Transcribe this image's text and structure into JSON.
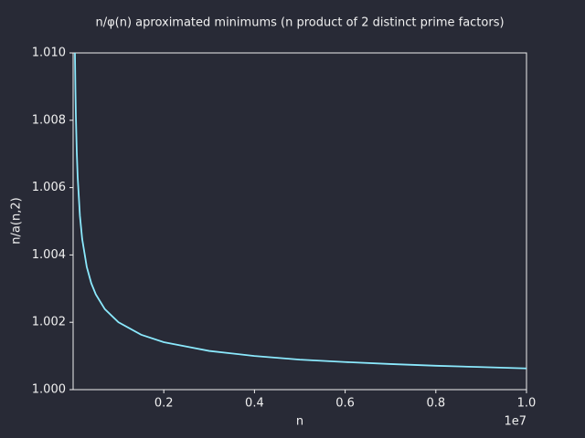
{
  "chart_data": {
    "type": "line",
    "title": "n/φ(n) aproximated minimums (n product of 2 distinct prime factors)",
    "xlabel": "n",
    "ylabel": "n/a(n,2)",
    "x_offset_label": "1e7",
    "x": [
      40000,
      50000,
      60000,
      80000,
      100000,
      150000,
      200000,
      300000,
      400000,
      500000,
      700000,
      1000000,
      1500000,
      2000000,
      3000000,
      4000000,
      5000000,
      6000000,
      7000000,
      8000000,
      9000000,
      10000000
    ],
    "series": [
      {
        "name": "n/a(n,2)",
        "color": "#8be9fd",
        "values": [
          1.01,
          1.00894,
          1.00816,
          1.00707,
          1.00632,
          1.00516,
          1.00447,
          1.00365,
          1.00316,
          1.00283,
          1.00239,
          1.002,
          1.00163,
          1.00141,
          1.00115,
          1.001,
          1.00089,
          1.00082,
          1.00076,
          1.00071,
          1.00067,
          1.00063
        ]
      }
    ],
    "xlim": [
      0,
      10000000
    ],
    "ylim": [
      1.0,
      1.01
    ],
    "xticks": [
      {
        "value": 2000000,
        "label": "0.2"
      },
      {
        "value": 4000000,
        "label": "0.4"
      },
      {
        "value": 6000000,
        "label": "0.6"
      },
      {
        "value": 8000000,
        "label": "0.8"
      },
      {
        "value": 10000000,
        "label": "1.0"
      }
    ],
    "yticks": [
      {
        "value": 1.0,
        "label": "1.000"
      },
      1.002,
      1.004,
      1.006,
      1.008,
      {
        "value": 1.01,
        "label": "1.010"
      }
    ],
    "grid": false
  }
}
